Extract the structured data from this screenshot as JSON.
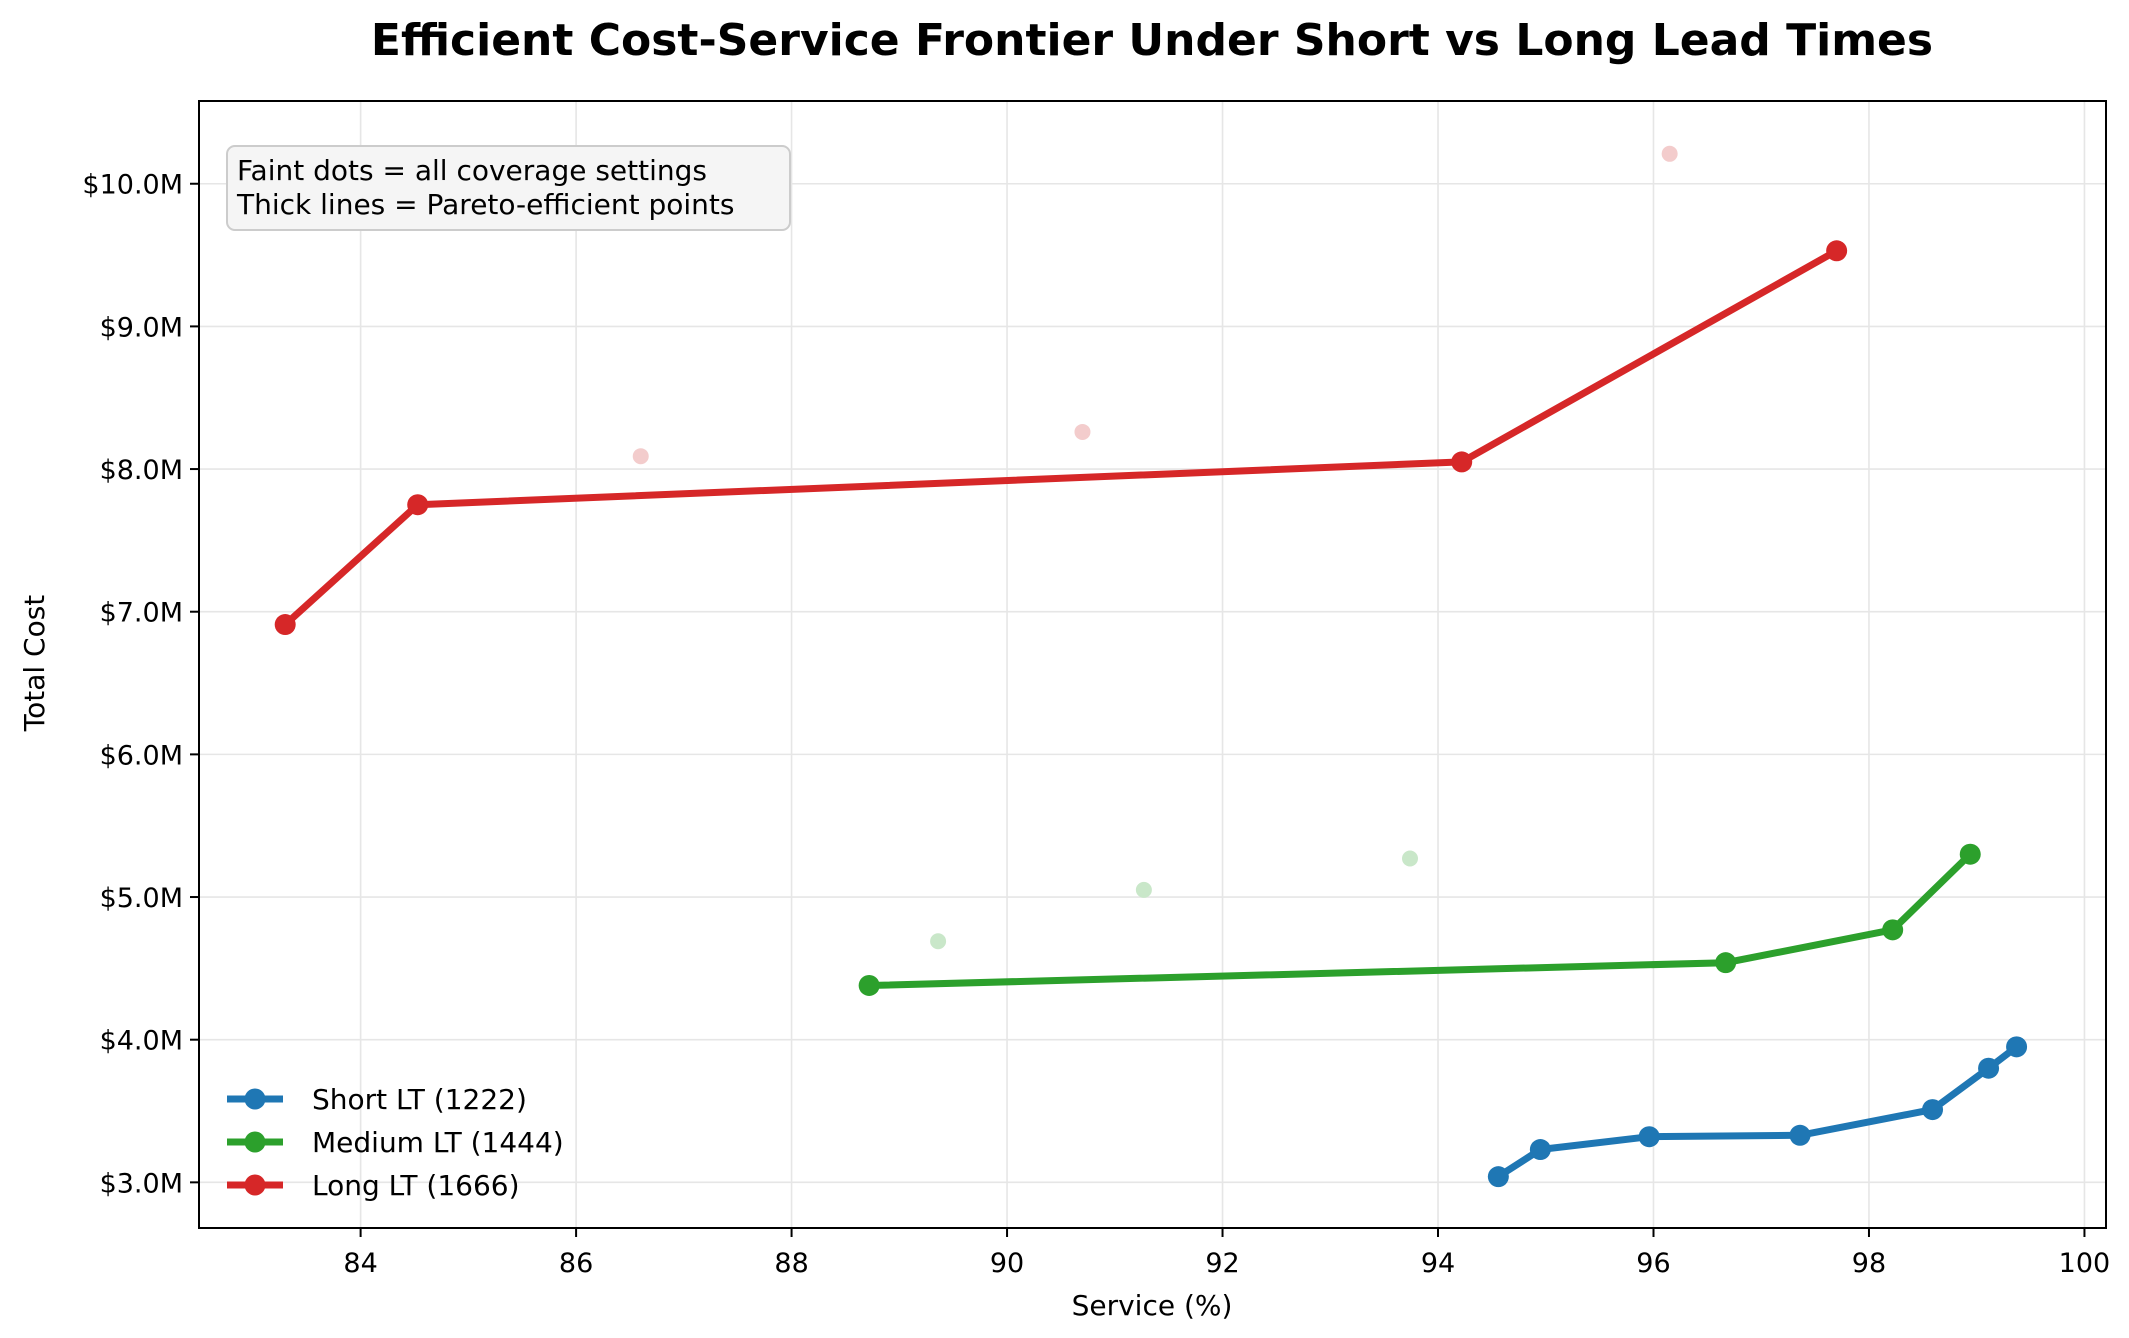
{
  "chart_data": {
    "type": "line",
    "title": "Efficient Cost-Service Frontier Under Short vs Long Lead Times",
    "xlabel": "Service (%)",
    "ylabel": "Total Cost",
    "xlim": [
      82.5,
      100.2
    ],
    "ylim": [
      2.68,
      10.58
    ],
    "x_ticks": [
      84,
      86,
      88,
      90,
      92,
      94,
      96,
      98,
      100
    ],
    "y_ticks": [
      {
        "value": 3,
        "label": "$3.0M"
      },
      {
        "value": 4,
        "label": "$4.0M"
      },
      {
        "value": 5,
        "label": "$5.0M"
      },
      {
        "value": 6,
        "label": "$6.0M"
      },
      {
        "value": 7,
        "label": "$7.0M"
      },
      {
        "value": 8,
        "label": "$8.0M"
      },
      {
        "value": 9,
        "label": "$9.0M"
      },
      {
        "value": 10,
        "label": "$10.0M"
      }
    ],
    "grid": true,
    "legend_position": "lower-left",
    "annotation": {
      "position": "upper-left",
      "lines": [
        "Faint dots = all coverage settings",
        "Thick lines = Pareto-efficient points"
      ]
    },
    "series": [
      {
        "name": "Short LT (1222)",
        "color": "#1f77b4",
        "faint_color": "#bcd6ea",
        "frontier": [
          {
            "x": 94.56,
            "y": 3.04
          },
          {
            "x": 94.95,
            "y": 3.23
          },
          {
            "x": 95.96,
            "y": 3.32
          },
          {
            "x": 97.36,
            "y": 3.33
          },
          {
            "x": 98.59,
            "y": 3.51
          },
          {
            "x": 99.11,
            "y": 3.8
          },
          {
            "x": 99.37,
            "y": 3.95
          }
        ],
        "all_points": []
      },
      {
        "name": "Medium LT (1444)",
        "color": "#2ca02c",
        "faint_color": "#c9e7c9",
        "frontier": [
          {
            "x": 88.72,
            "y": 4.38
          },
          {
            "x": 96.67,
            "y": 4.54
          },
          {
            "x": 98.22,
            "y": 4.77
          },
          {
            "x": 98.94,
            "y": 5.3
          }
        ],
        "all_points": [
          {
            "x": 89.36,
            "y": 4.69
          },
          {
            "x": 91.27,
            "y": 5.05
          },
          {
            "x": 93.74,
            "y": 5.27
          }
        ]
      },
      {
        "name": "Long LT (1666)",
        "color": "#d62728",
        "faint_color": "#f3cccc",
        "frontier": [
          {
            "x": 83.3,
            "y": 6.91
          },
          {
            "x": 84.53,
            "y": 7.75
          },
          {
            "x": 94.22,
            "y": 8.05
          },
          {
            "x": 97.7,
            "y": 9.53
          }
        ],
        "all_points": [
          {
            "x": 86.6,
            "y": 8.09
          },
          {
            "x": 90.7,
            "y": 8.26
          },
          {
            "x": 96.15,
            "y": 10.21
          }
        ]
      }
    ]
  }
}
